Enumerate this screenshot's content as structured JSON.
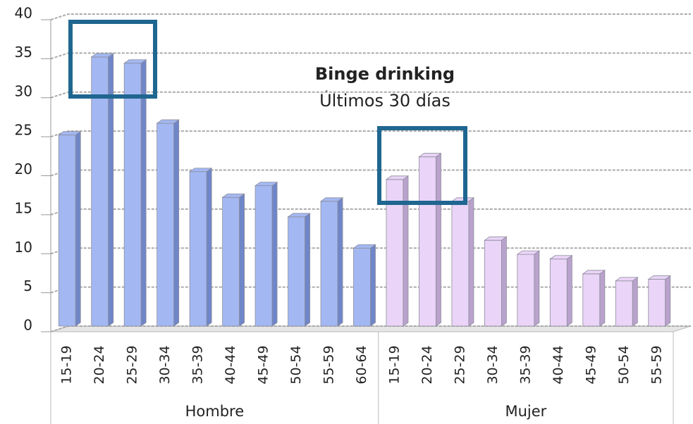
{
  "chart_data": {
    "type": "bar",
    "title": "Binge drinking",
    "subtitle": "Últimos 30 días",
    "groups": [
      {
        "name": "Hombre",
        "color": "#a3b8f2",
        "side_color": "#6f86c8",
        "categories": [
          "15-19",
          "20-24",
          "25-29",
          "30-34",
          "35-39",
          "40-44",
          "45-49",
          "50-54",
          "55-59",
          "60-64"
        ],
        "values": [
          24.5,
          34.5,
          33.7,
          26,
          19.8,
          16.5,
          18,
          14,
          16,
          10
        ]
      },
      {
        "name": "Mujer",
        "color": "#ead4f7",
        "side_color": "#b9a2cb",
        "categories": [
          "15-19",
          "20-24",
          "25-29",
          "30-34",
          "35-39",
          "40-44",
          "45-49",
          "50-54",
          "55-59"
        ],
        "values": [
          18.8,
          21.7,
          16,
          11,
          9.2,
          8.6,
          6.7,
          5.8,
          6
        ]
      }
    ],
    "ylim": [
      0,
      40
    ],
    "yticks": [
      0,
      5,
      10,
      15,
      20,
      25,
      30,
      35,
      40
    ],
    "grid": true
  }
}
